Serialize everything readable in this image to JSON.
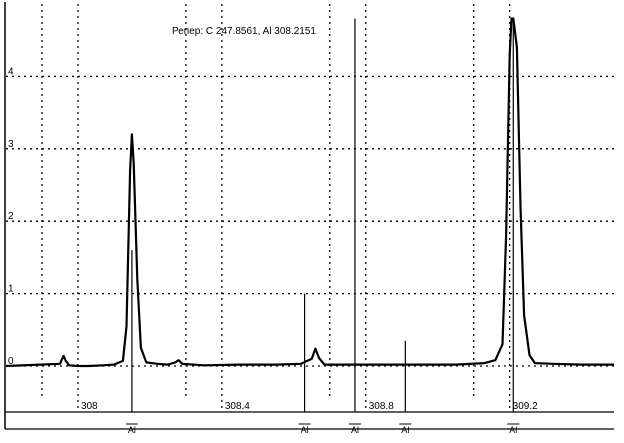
{
  "colors": {
    "background": "#ffffff",
    "line": "#000000",
    "grid": "#000000"
  },
  "chart_data": {
    "type": "line",
    "title": "",
    "xlabel": "",
    "ylabel": "",
    "annotation": "Репер: C  247.8561, Al  308.2151",
    "xlim": [
      307.8,
      309.49
    ],
    "ylim": [
      -0.1,
      4.8
    ],
    "grid": true,
    "grid_style": "dotted",
    "x_ticks": [
      {
        "value": 308.0,
        "label": "308"
      },
      {
        "value": 308.4,
        "label": "308.4"
      },
      {
        "value": 308.8,
        "label": "308.8"
      },
      {
        "value": 309.2,
        "label": "309.2"
      }
    ],
    "x_gridlines": [
      307.9,
      308.3,
      308.7,
      309.1
    ],
    "y_ticks": [
      {
        "value": 0,
        "label": "0"
      },
      {
        "value": 1,
        "label": "1"
      },
      {
        "value": 2,
        "label": "2"
      },
      {
        "value": 3,
        "label": "3"
      },
      {
        "value": 4,
        "label": "4"
      }
    ],
    "reference_lines": [
      {
        "x": 308.15,
        "ymax": 1.6
      },
      {
        "x": 308.63,
        "ymax": 1.0
      },
      {
        "x": 308.77,
        "ymax": 4.8
      },
      {
        "x": 308.91,
        "ymax": 0.35
      },
      {
        "x": 309.21,
        "ymax": 4.8
      }
    ],
    "line_markers": [
      {
        "x": 308.15,
        "label": "Al"
      },
      {
        "x": 308.63,
        "label": "Al"
      },
      {
        "x": 308.77,
        "label": "Al"
      },
      {
        "x": 308.91,
        "label": "Al"
      },
      {
        "x": 309.21,
        "label": "Al"
      }
    ],
    "series": [
      {
        "values": [
          [
            307.8,
            0.0
          ],
          [
            307.95,
            0.03
          ],
          [
            307.955,
            0.09
          ],
          [
            307.96,
            0.14
          ],
          [
            307.965,
            0.08
          ],
          [
            307.975,
            0.01
          ],
          [
            308.0,
            0.0
          ],
          [
            308.03,
            0.0
          ],
          [
            308.07,
            0.01
          ],
          [
            308.1,
            0.02
          ],
          [
            308.125,
            0.07
          ],
          [
            308.135,
            0.55
          ],
          [
            308.145,
            2.7
          ],
          [
            308.15,
            3.2
          ],
          [
            308.155,
            2.8
          ],
          [
            308.165,
            1.2
          ],
          [
            308.175,
            0.25
          ],
          [
            308.19,
            0.05
          ],
          [
            308.22,
            0.03
          ],
          [
            308.25,
            0.02
          ],
          [
            308.27,
            0.05
          ],
          [
            308.28,
            0.08
          ],
          [
            308.29,
            0.03
          ],
          [
            308.35,
            0.01
          ],
          [
            308.45,
            0.02
          ],
          [
            308.55,
            0.02
          ],
          [
            308.62,
            0.03
          ],
          [
            308.65,
            0.1
          ],
          [
            308.66,
            0.24
          ],
          [
            308.67,
            0.11
          ],
          [
            308.685,
            0.02
          ],
          [
            308.75,
            0.02
          ],
          [
            308.85,
            0.02
          ],
          [
            308.95,
            0.02
          ],
          [
            309.05,
            0.02
          ],
          [
            309.13,
            0.04
          ],
          [
            309.16,
            0.08
          ],
          [
            309.18,
            0.3
          ],
          [
            309.19,
            1.8
          ],
          [
            309.2,
            4.3
          ],
          [
            309.205,
            4.8
          ],
          [
            309.21,
            4.8
          ],
          [
            309.22,
            4.4
          ],
          [
            309.23,
            2.2
          ],
          [
            309.24,
            0.7
          ],
          [
            309.255,
            0.15
          ],
          [
            309.27,
            0.04
          ],
          [
            309.32,
            0.03
          ],
          [
            309.4,
            0.02
          ],
          [
            309.49,
            0.02
          ]
        ]
      }
    ]
  }
}
